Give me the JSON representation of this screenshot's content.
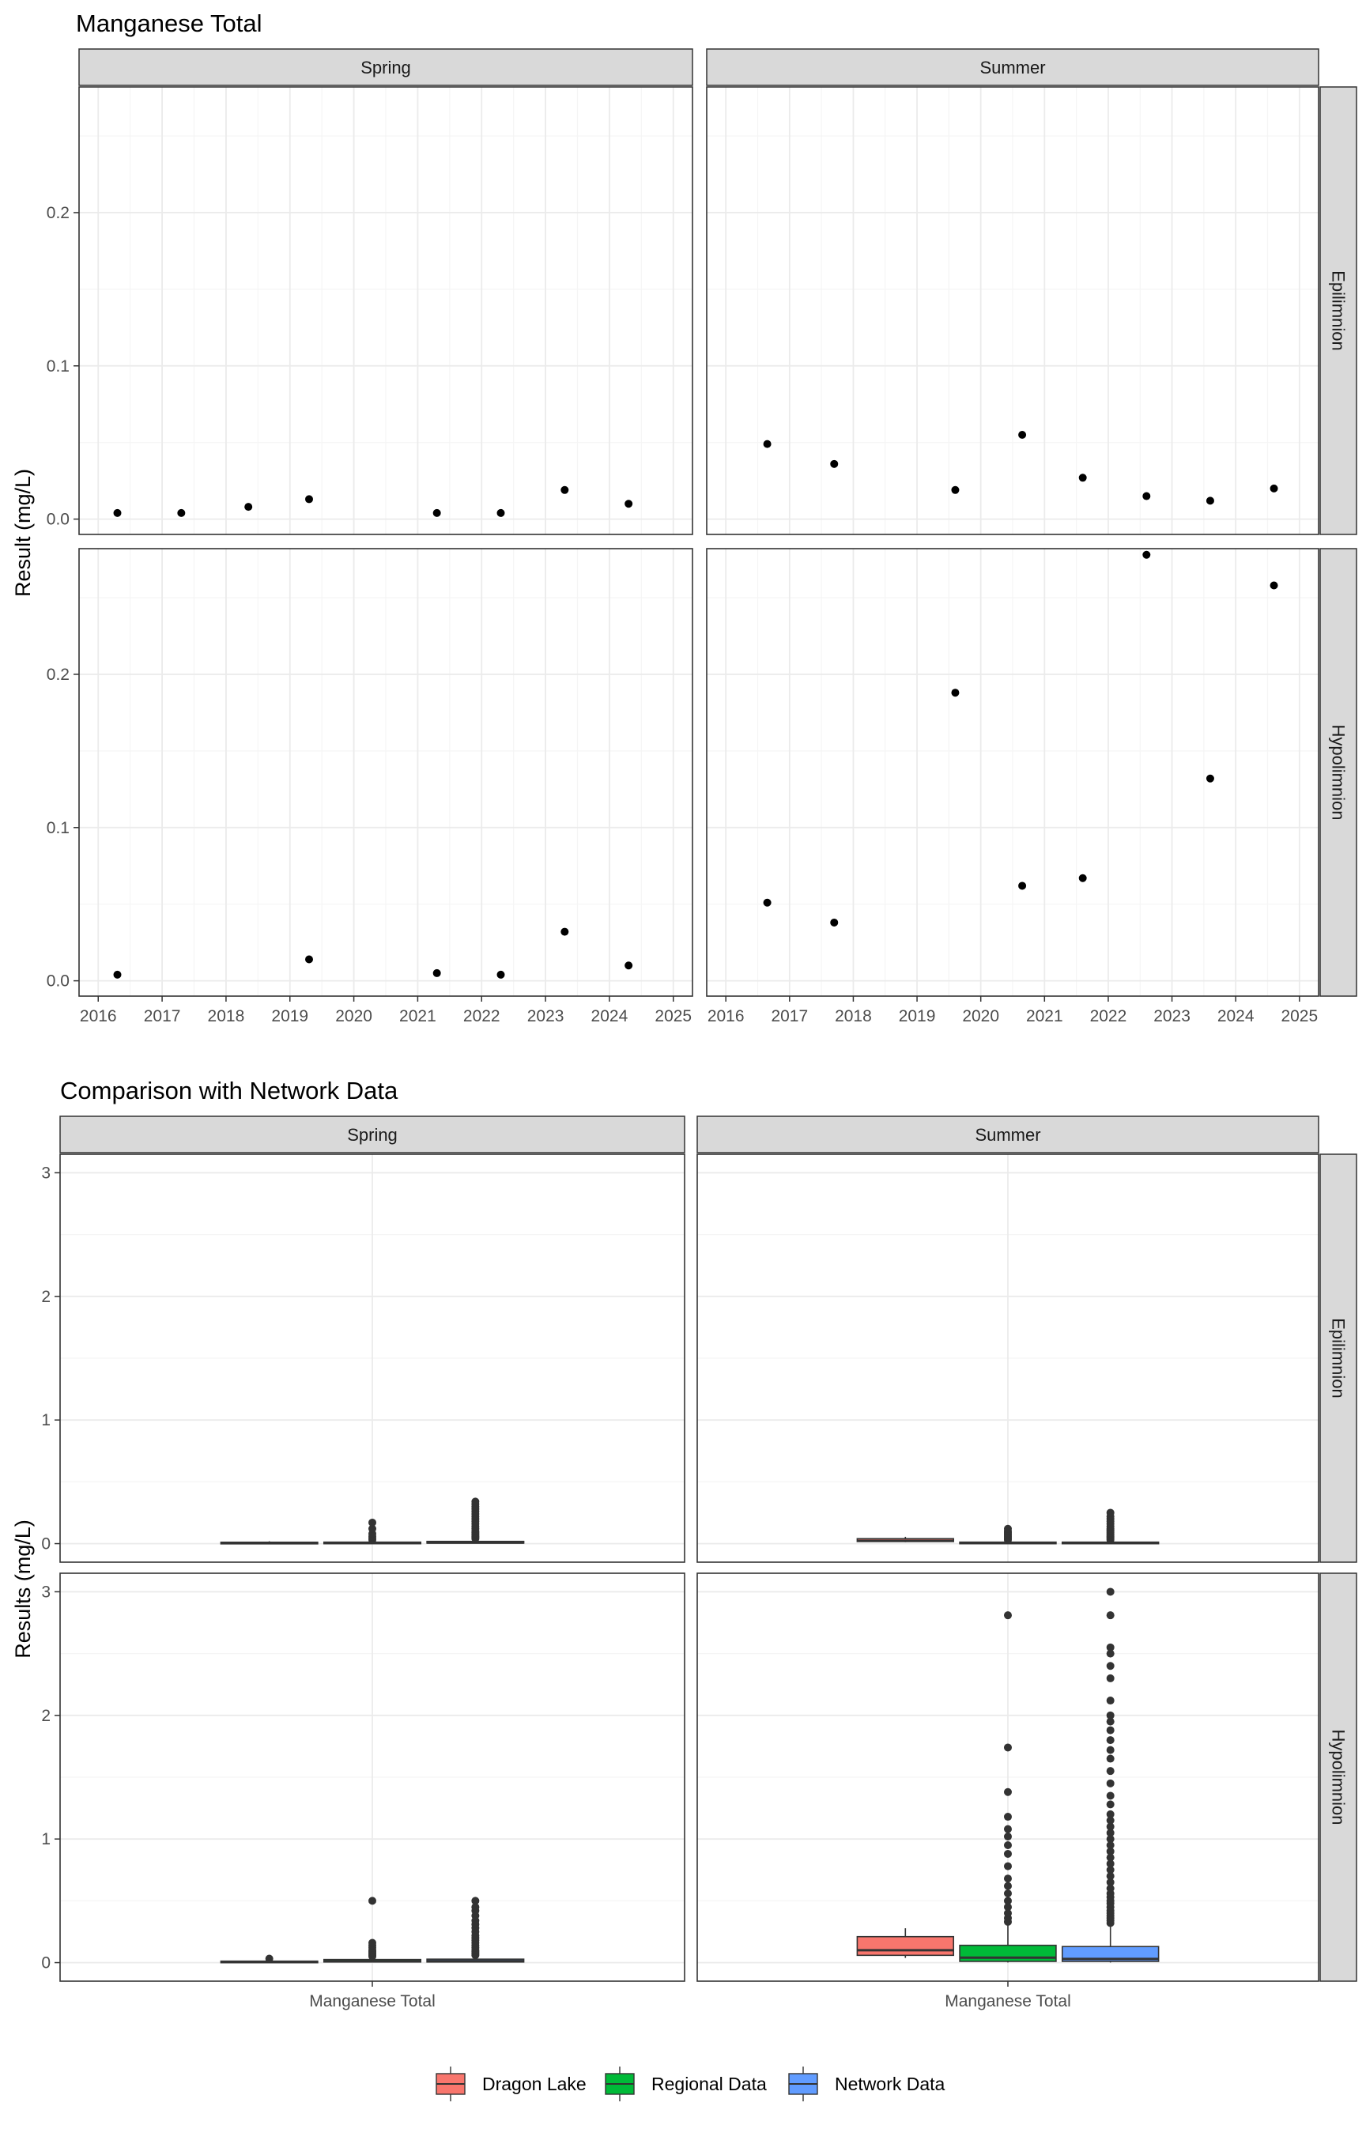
{
  "chart_data": [
    {
      "type": "scatter",
      "title": "Manganese Total",
      "ylabel": "Result (mg/L)",
      "xlabel": "",
      "x_tick_labels": [
        "2016",
        "2017",
        "2018",
        "2019",
        "2020",
        "2021",
        "2022",
        "2023",
        "2024",
        "2025"
      ],
      "x_range": [
        2015.7,
        2025.3
      ],
      "y_range": [
        -0.01,
        0.282
      ],
      "y_ticks": [
        0.0,
        0.1,
        0.2
      ],
      "y_tick_labels": [
        "0.0",
        "0.1",
        "0.2"
      ],
      "columns": [
        "Spring",
        "Summer"
      ],
      "rows": [
        "Epilimnion",
        "Hypolimnion"
      ],
      "grid": true,
      "point_color": "#000000",
      "panels": [
        {
          "column": "Spring",
          "row": "Epilimnion",
          "points": [
            [
              2016.3,
              0.004
            ],
            [
              2017.3,
              0.004
            ],
            [
              2018.35,
              0.008
            ],
            [
              2019.3,
              0.013
            ],
            [
              2021.3,
              0.004
            ],
            [
              2022.3,
              0.004
            ],
            [
              2023.3,
              0.019
            ],
            [
              2024.3,
              0.01
            ]
          ]
        },
        {
          "column": "Summer",
          "row": "Epilimnion",
          "points": [
            [
              2016.65,
              0.049
            ],
            [
              2017.7,
              0.036
            ],
            [
              2019.6,
              0.019
            ],
            [
              2020.65,
              0.055
            ],
            [
              2021.6,
              0.027
            ],
            [
              2022.6,
              0.015
            ],
            [
              2023.6,
              0.012
            ],
            [
              2024.6,
              0.02
            ]
          ]
        },
        {
          "column": "Spring",
          "row": "Hypolimnion",
          "points": [
            [
              2016.3,
              0.004
            ],
            [
              2019.3,
              0.014
            ],
            [
              2021.3,
              0.005
            ],
            [
              2022.3,
              0.004
            ],
            [
              2023.3,
              0.032
            ],
            [
              2024.3,
              0.01
            ]
          ]
        },
        {
          "column": "Summer",
          "row": "Hypolimnion",
          "points": [
            [
              2016.65,
              0.051
            ],
            [
              2017.7,
              0.038
            ],
            [
              2019.6,
              0.188
            ],
            [
              2020.65,
              0.062
            ],
            [
              2021.6,
              0.067
            ],
            [
              2022.6,
              0.278
            ],
            [
              2023.6,
              0.132
            ],
            [
              2024.6,
              0.258
            ]
          ]
        }
      ]
    },
    {
      "type": "box",
      "title": "Comparison with Network Data",
      "ylabel": "Results (mg/L)",
      "category_label": "Manganese Total",
      "y_range": [
        -0.15,
        3.15
      ],
      "y_ticks": [
        0,
        1,
        2,
        3
      ],
      "y_tick_labels": [
        "0",
        "1",
        "2",
        "3"
      ],
      "columns": [
        "Spring",
        "Summer"
      ],
      "rows": [
        "Epilimnion",
        "Hypolimnion"
      ],
      "grid": true,
      "legend_position": "bottom",
      "series": [
        {
          "name": "Dragon Lake",
          "color": "#F8766D"
        },
        {
          "name": "Regional Data",
          "color": "#00BA38"
        },
        {
          "name": "Network Data",
          "color": "#619CFF"
        }
      ],
      "panels": [
        {
          "column": "Spring",
          "row": "Epilimnion",
          "boxes": [
            {
              "series": "Dragon Lake",
              "min": 0.004,
              "q1": 0.004,
              "median": 0.006,
              "q3": 0.011,
              "max": 0.019,
              "outliers": []
            },
            {
              "series": "Regional Data",
              "min": 0.001,
              "q1": 0.003,
              "median": 0.006,
              "q3": 0.012,
              "max": 0.025,
              "outliers": [
                0.03,
                0.045,
                0.06,
                0.08,
                0.12,
                0.17
              ]
            },
            {
              "series": "Network Data",
              "min": 0.001,
              "q1": 0.004,
              "median": 0.008,
              "q3": 0.018,
              "max": 0.035,
              "outliers": [
                0.04,
                0.05,
                0.06,
                0.07,
                0.08,
                0.09,
                0.1,
                0.12,
                0.14,
                0.16,
                0.18,
                0.2,
                0.22,
                0.24,
                0.26,
                0.28,
                0.3,
                0.32,
                0.34
              ]
            }
          ]
        },
        {
          "column": "Summer",
          "row": "Epilimnion",
          "boxes": [
            {
              "series": "Dragon Lake",
              "min": 0.012,
              "q1": 0.017,
              "median": 0.023,
              "q3": 0.04,
              "max": 0.055,
              "outliers": []
            },
            {
              "series": "Regional Data",
              "min": 0.001,
              "q1": 0.003,
              "median": 0.006,
              "q3": 0.012,
              "max": 0.025,
              "outliers": [
                0.03,
                0.04,
                0.05,
                0.06,
                0.07,
                0.08,
                0.09,
                0.1,
                0.12
              ]
            },
            {
              "series": "Network Data",
              "min": 0.001,
              "q1": 0.003,
              "median": 0.005,
              "q3": 0.012,
              "max": 0.025,
              "outliers": [
                0.03,
                0.04,
                0.05,
                0.06,
                0.07,
                0.08,
                0.09,
                0.1,
                0.11,
                0.12,
                0.14,
                0.16,
                0.18,
                0.2,
                0.22,
                0.25
              ]
            }
          ]
        },
        {
          "column": "Spring",
          "row": "Hypolimnion",
          "boxes": [
            {
              "series": "Dragon Lake",
              "min": 0.004,
              "q1": 0.004,
              "median": 0.007,
              "q3": 0.012,
              "max": 0.02,
              "outliers": [
                0.032
              ]
            },
            {
              "series": "Regional Data",
              "min": 0.001,
              "q1": 0.005,
              "median": 0.01,
              "q3": 0.025,
              "max": 0.045,
              "outliers": [
                0.05,
                0.06,
                0.07,
                0.08,
                0.09,
                0.1,
                0.12,
                0.14,
                0.16,
                0.5
              ]
            },
            {
              "series": "Network Data",
              "min": 0.001,
              "q1": 0.005,
              "median": 0.012,
              "q3": 0.028,
              "max": 0.05,
              "outliers": [
                0.06,
                0.07,
                0.08,
                0.09,
                0.1,
                0.12,
                0.14,
                0.16,
                0.18,
                0.2,
                0.22,
                0.25,
                0.28,
                0.31,
                0.34,
                0.38,
                0.42,
                0.45,
                0.5
              ]
            }
          ]
        },
        {
          "column": "Summer",
          "row": "Hypolimnion",
          "boxes": [
            {
              "series": "Dragon Lake",
              "min": 0.038,
              "q1": 0.059,
              "median": 0.1,
              "q3": 0.21,
              "max": 0.278,
              "outliers": []
            },
            {
              "series": "Regional Data",
              "min": 0.001,
              "q1": 0.01,
              "median": 0.04,
              "q3": 0.14,
              "max": 0.3,
              "outliers": [
                0.33,
                0.36,
                0.4,
                0.45,
                0.5,
                0.56,
                0.62,
                0.68,
                0.78,
                0.88,
                0.95,
                1.02,
                1.08,
                1.18,
                1.38,
                1.74,
                2.81
              ]
            },
            {
              "series": "Network Data",
              "min": 0.001,
              "q1": 0.01,
              "median": 0.03,
              "q3": 0.13,
              "max": 0.3,
              "outliers": [
                0.32,
                0.34,
                0.36,
                0.38,
                0.4,
                0.42,
                0.45,
                0.48,
                0.5,
                0.53,
                0.56,
                0.6,
                0.65,
                0.7,
                0.75,
                0.8,
                0.85,
                0.9,
                0.95,
                1.0,
                1.05,
                1.1,
                1.15,
                1.2,
                1.28,
                1.35,
                1.45,
                1.55,
                1.65,
                1.72,
                1.8,
                1.88,
                1.95,
                2.0,
                2.12,
                2.3,
                2.4,
                2.5,
                2.55,
                2.81,
                3.0
              ]
            }
          ]
        }
      ]
    }
  ]
}
